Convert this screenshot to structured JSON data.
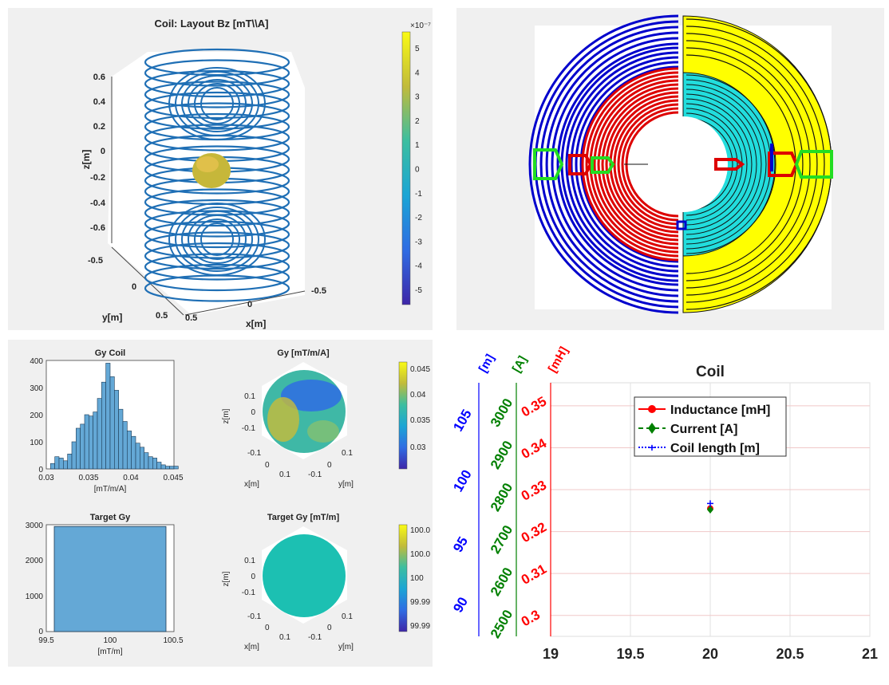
{
  "panels": {
    "coil3d": {
      "title": "Coil: Layout Bz [mT\\\\A]",
      "xlabel": "x[m]",
      "ylabel": "y[m]",
      "zlabel": "z[m]",
      "zticks": [
        "0.6",
        "0.4",
        "0.2",
        "0",
        "-0.2",
        "-0.4",
        "-0.6"
      ],
      "xticks": [
        "0.5",
        "0",
        "-0.5"
      ],
      "yticks": [
        "-0.5",
        "0",
        "0.5"
      ],
      "colorbar_exp": "×10⁻⁷",
      "colorbar_ticks": [
        "5",
        "4",
        "3",
        "2",
        "1",
        "0",
        "-1",
        "-2",
        "-3",
        "-4",
        "-5"
      ]
    },
    "layout2d": {},
    "gy_hist": {
      "title": "Gy Coil",
      "xlabel": "[mT/m/A]",
      "yticks": [
        "400",
        "300",
        "200",
        "100",
        "0"
      ],
      "xticks": [
        "0.03",
        "0.035",
        "0.04",
        "0.045"
      ]
    },
    "gy_sphere": {
      "title": "Gy [mT/m/A]",
      "xlabel": "x[m]",
      "ylabel": "y[m]",
      "zlabel": "z[m]",
      "zticks": [
        "0.1",
        "0",
        "-0.1"
      ],
      "xticks": [
        "-0.1",
        "0",
        "0.1"
      ],
      "yticks": [
        "-0.1",
        "0",
        "0.1"
      ],
      "colorbar_ticks": [
        "0.045",
        "0.04",
        "0.035",
        "0.03"
      ]
    },
    "target_hist": {
      "title": "Target Gy",
      "xlabel": "[mT/m]",
      "yticks": [
        "3000",
        "2000",
        "1000",
        "0"
      ],
      "xticks": [
        "99.5",
        "100",
        "100.5"
      ]
    },
    "target_sphere": {
      "title": "Target Gy [mT/m]",
      "xlabel": "x[m]",
      "ylabel": "y[m]",
      "zlabel": "z[m]",
      "zticks": [
        "0.1",
        "0",
        "-0.1"
      ],
      "xticks": [
        "-0.1",
        "0",
        "0.1"
      ],
      "yticks": [
        "-0.1",
        "0",
        "0.1"
      ],
      "colorbar_ticks": [
        "100.0",
        "100.0",
        "100",
        "99.99",
        "99.99"
      ]
    },
    "coil_multi": {
      "title": "Coil",
      "axis_m_label": "[m]",
      "axis_a_label": "[A]",
      "axis_mh_label": "[mH]",
      "m_ticks": [
        "105",
        "100",
        "95",
        "90"
      ],
      "a_ticks": [
        "3000",
        "2900",
        "2800",
        "2700",
        "2600",
        "2500"
      ],
      "mh_ticks": [
        "0.35",
        "0.34",
        "0.33",
        "0.32",
        "0.31",
        "0.3"
      ],
      "xticks": [
        "19",
        "19.5",
        "20",
        "20.5",
        "21"
      ],
      "legend": [
        "Inductance [mH]",
        "Current [A]",
        "Coil length [m]"
      ]
    }
  },
  "chart_data": [
    {
      "type": "line",
      "title": "Coil: Layout Bz [mT\\\\A]",
      "xlabel": "x[m]",
      "ylabel": "y[m]",
      "zlabel": "z[m]",
      "xlim": [
        -0.5,
        0.5
      ],
      "ylim": [
        -0.5,
        0.5
      ],
      "zlim": [
        -0.7,
        0.7
      ],
      "colorbar_range": [
        -5.5,
        5.5
      ]
    },
    {
      "type": "line",
      "colors": [
        "#0000cc",
        "#dd0000",
        "#00cccc",
        "#ffff00",
        "#22dd22"
      ]
    },
    {
      "type": "bar",
      "title": "Gy Coil",
      "xlabel": "[mT/m/A]",
      "xlim": [
        0.03,
        0.045
      ],
      "ylim": [
        0,
        400
      ],
      "bin_width": 0.0005,
      "bin_start": 0.0305,
      "values": [
        20,
        45,
        40,
        30,
        55,
        100,
        150,
        165,
        200,
        195,
        210,
        260,
        320,
        390,
        340,
        290,
        220,
        175,
        140,
        120,
        95,
        80,
        60,
        45,
        40,
        25,
        15,
        10,
        10,
        10
      ]
    },
    {
      "type": "heatmap",
      "title": "Gy [mT/m/A]",
      "colorbar_range": [
        0.028,
        0.046
      ]
    },
    {
      "type": "bar",
      "title": "Target Gy",
      "xlabel": "[mT/m]",
      "xlim": [
        99.5,
        100.5
      ],
      "ylim": [
        0,
        3000
      ],
      "categories": [
        "100"
      ],
      "values": [
        2950
      ]
    },
    {
      "type": "heatmap",
      "title": "Target Gy [mT/m]",
      "colorbar_range": [
        99.99,
        100.0
      ]
    },
    {
      "type": "line",
      "title": "Coil",
      "xlim": [
        19,
        21
      ],
      "series": [
        {
          "name": "Inductance [mH]",
          "color": "#ff0000",
          "x": [
            20
          ],
          "y": [
            0.3255
          ],
          "ylim": [
            0.295,
            0.3555
          ]
        },
        {
          "name": "Current [A]",
          "color": "#008000",
          "x": [
            20
          ],
          "y": [
            2770
          ],
          "ylim": [
            2470,
            3070
          ]
        },
        {
          "name": "Coil length [m]",
          "color": "#0000ff",
          "x": [
            20
          ],
          "y": [
            98
          ],
          "ylim": [
            87,
            108
          ]
        }
      ]
    }
  ]
}
